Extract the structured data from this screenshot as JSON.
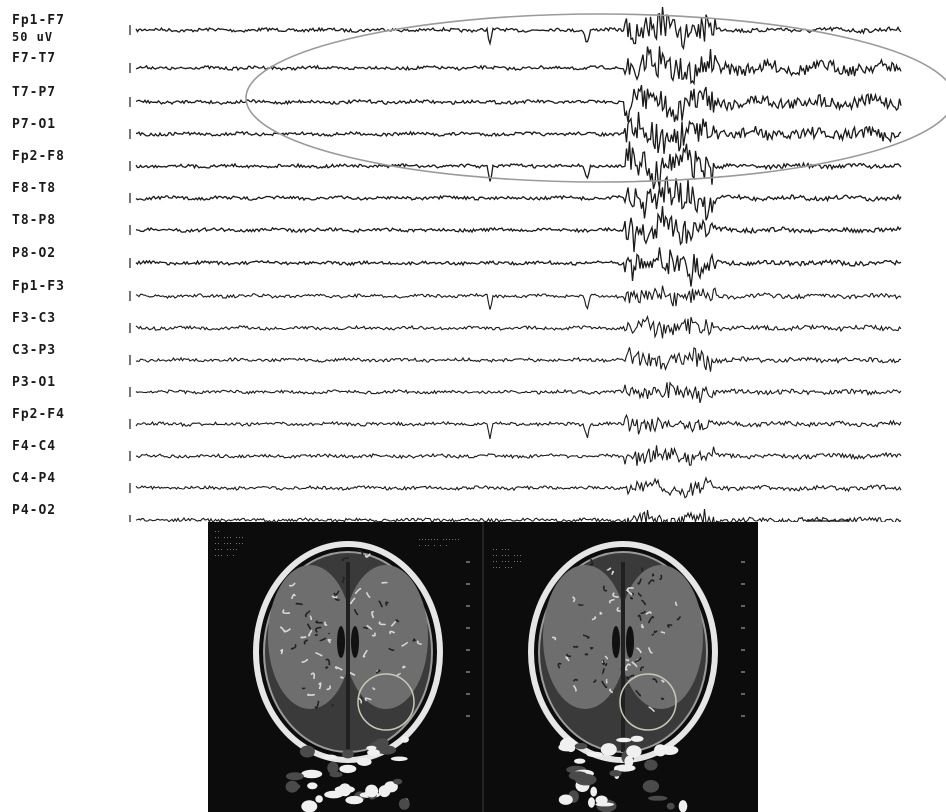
{
  "eeg": {
    "calibration_label": "50 uV",
    "channels": [
      "Fp1-F7",
      "F7-T7",
      "T7-P7",
      "P7-O1",
      "Fp2-F8",
      "F8-T8",
      "T8-P8",
      "P8-O2",
      "Fp1-F3",
      "F3-C3",
      "C3-P3",
      "P3-O1",
      "Fp2-F4",
      "F4-C4",
      "C4-P4",
      "P4-O2"
    ],
    "highlighted_channels": [
      "F7-T7",
      "T7-P7",
      "P7-O1",
      "Fp2-F8"
    ],
    "colors": {
      "trace": "#1a1a1a",
      "highlight_ellipse": "#9a9a9a"
    }
  },
  "mri": {
    "panels": 2,
    "colors": {
      "background": "#0c0c0c",
      "annotation_circle": "#c8c8b4"
    }
  }
}
